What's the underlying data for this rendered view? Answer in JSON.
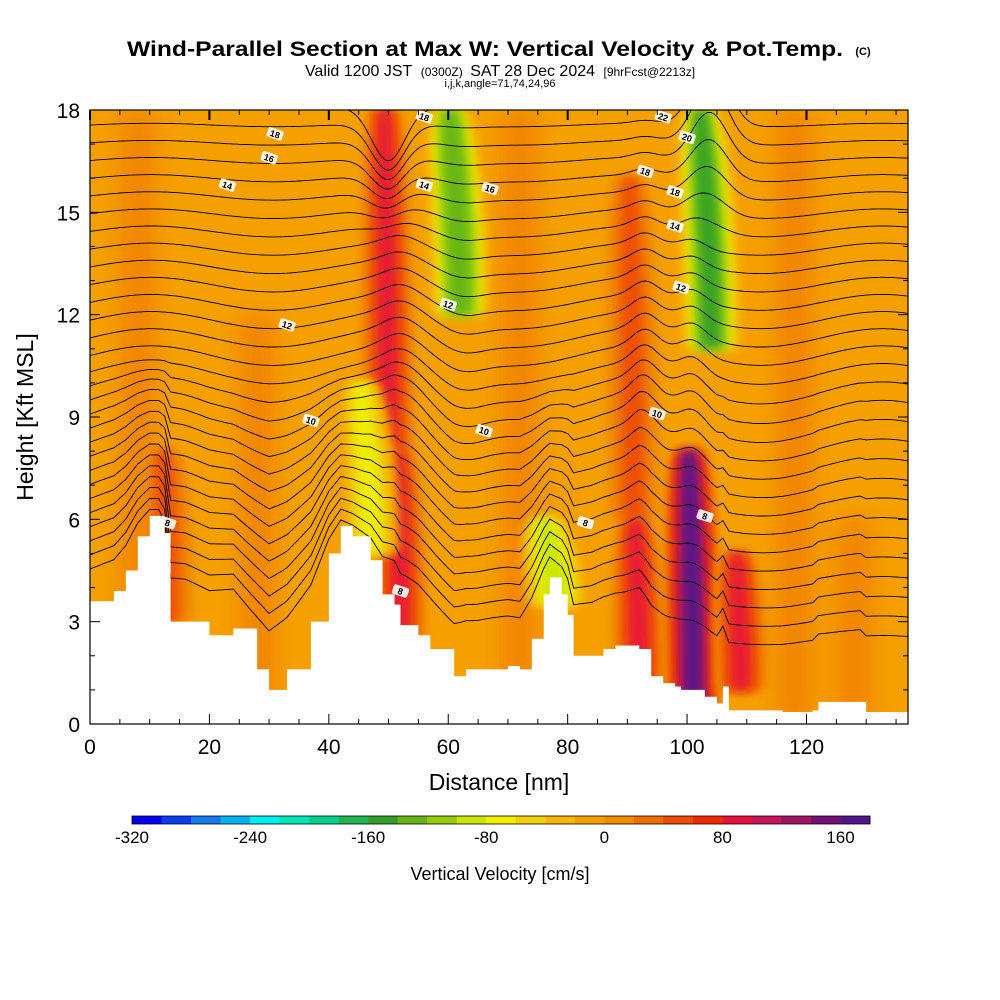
{
  "header": {
    "title": "Wind-Parallel Section at Max W: Vertical Velocity & Pot.Temp.",
    "copyright": "(C)",
    "valid_prefix": "Valid 1200 JST",
    "valid_utc": "(0300Z)",
    "valid_date": "SAT 28 Dec 2024",
    "forecast": "[9hrFcst@2213z]",
    "indices": "i,j,k,angle=71,74,24,96"
  },
  "colors": {
    "contour": "#000000",
    "terrain": "#ffffff",
    "background_field": "#f7b400",
    "frame": "#000000"
  },
  "colorbar": {
    "title": "Vertical Velocity [cm/s]",
    "labels": [
      "-320",
      "-240",
      "-160",
      "-80",
      "0",
      "80",
      "160"
    ],
    "levels": [
      -320,
      -300,
      -280,
      -260,
      -240,
      -220,
      -200,
      -180,
      -160,
      -140,
      -120,
      -100,
      -80,
      -60,
      -40,
      -20,
      0,
      20,
      40,
      60,
      80,
      100,
      120,
      140,
      160,
      180
    ],
    "colors": [
      "#0000f0",
      "#0a3cf0",
      "#1478f0",
      "#00b4f0",
      "#00f0f0",
      "#00e6b4",
      "#00d28c",
      "#1eb450",
      "#32a028",
      "#64b414",
      "#96cd0a",
      "#c8e600",
      "#f0f000",
      "#f0d200",
      "#f7b400",
      "#f5a000",
      "#f08c00",
      "#f06e00",
      "#f04b00",
      "#f02800",
      "#e6143c",
      "#c8145a",
      "#a01464",
      "#780f78",
      "#50148c"
    ]
  },
  "chart_data": {
    "type": "heatmap",
    "title": "Wind-Parallel Section at Max W: Vertical Velocity & Pot.Temp.",
    "xlabel": "Distance [nm]",
    "ylabel": "Height [Kft MSL]",
    "xlim": [
      0,
      137
    ],
    "ylim": [
      0,
      18
    ],
    "xticks": [
      0,
      20,
      40,
      60,
      80,
      100,
      120
    ],
    "yticks": [
      0,
      3,
      6,
      9,
      12,
      15,
      18
    ],
    "field": "Vertical Velocity [cm/s]",
    "background_value": -20,
    "updrafts": [
      {
        "x": 50,
        "y_bottom": 6,
        "y_top": 18,
        "peak": 80
      },
      {
        "x": 52,
        "y_bottom": 2.5,
        "y_top": 8,
        "peak": 80
      },
      {
        "x": 91,
        "y_bottom": 6,
        "y_top": 16,
        "peak": 40
      },
      {
        "x": 92,
        "y_bottom": 1,
        "y_top": 6,
        "peak": 80
      },
      {
        "x": 101,
        "y_bottom": 0.5,
        "y_top": 8,
        "peak": 160
      },
      {
        "x": 109,
        "y_bottom": 1,
        "y_top": 5,
        "peak": 80
      },
      {
        "x": 13,
        "y_bottom": 3,
        "y_top": 8,
        "peak": 40
      }
    ],
    "downdrafts": [
      {
        "x": 62,
        "y_bottom": 12,
        "y_top": 18,
        "peak": -140
      },
      {
        "x": 104,
        "y_bottom": 11,
        "y_top": 18,
        "peak": -160
      },
      {
        "x": 78,
        "y_bottom": 3.5,
        "y_top": 6,
        "peak": -100
      },
      {
        "x": 47,
        "y_bottom": 5,
        "y_top": 10,
        "peak": -80
      }
    ],
    "terrain_kft": [
      [
        0,
        3.6
      ],
      [
        4,
        3.9
      ],
      [
        6,
        4.5
      ],
      [
        8,
        5.5
      ],
      [
        10,
        6.1
      ],
      [
        11.5,
        6.1
      ],
      [
        12.5,
        5.6
      ],
      [
        13.5,
        3.0
      ],
      [
        16,
        3.0
      ],
      [
        20,
        2.6
      ],
      [
        24,
        2.8
      ],
      [
        28,
        1.6
      ],
      [
        30,
        1.0
      ],
      [
        33,
        1.6
      ],
      [
        37,
        3.0
      ],
      [
        40,
        5.0
      ],
      [
        42,
        5.8
      ],
      [
        44,
        5.5
      ],
      [
        47,
        4.8
      ],
      [
        49,
        3.8
      ],
      [
        51,
        3.5
      ],
      [
        52,
        2.9
      ],
      [
        55,
        2.6
      ],
      [
        57,
        2.2
      ],
      [
        61,
        1.4
      ],
      [
        63,
        1.6
      ],
      [
        65,
        1.6
      ],
      [
        70,
        1.7
      ],
      [
        72,
        1.6
      ],
      [
        74,
        2.5
      ],
      [
        76,
        3.8
      ],
      [
        77,
        4.3
      ],
      [
        79,
        3.8
      ],
      [
        80,
        3.2
      ],
      [
        81,
        2.0
      ],
      [
        84,
        2.0
      ],
      [
        86,
        2.2
      ],
      [
        88,
        2.3
      ],
      [
        92,
        2.2
      ],
      [
        94,
        1.4
      ],
      [
        96,
        1.2
      ],
      [
        98,
        1.1
      ],
      [
        99,
        1.0
      ],
      [
        103,
        0.8
      ],
      [
        105,
        0.6
      ],
      [
        106,
        1.1
      ],
      [
        107,
        0.4
      ],
      [
        116,
        0.35
      ],
      [
        121,
        0.4
      ],
      [
        122,
        0.65
      ],
      [
        129,
        0.65
      ],
      [
        130,
        0.35
      ],
      [
        137,
        0.35
      ]
    ],
    "theta_contours": {
      "units": "deg C (potential temperature)",
      "labeled_values": [
        "8",
        "10",
        "12",
        "14",
        "16",
        "18",
        "20",
        "22"
      ],
      "labels": [
        {
          "text": "18",
          "x": 31,
          "y": 17.3
        },
        {
          "text": "16",
          "x": 30,
          "y": 16.6
        },
        {
          "text": "14",
          "x": 23,
          "y": 15.8
        },
        {
          "text": "18",
          "x": 56,
          "y": 17.8
        },
        {
          "text": "14",
          "x": 56,
          "y": 15.8
        },
        {
          "text": "16",
          "x": 67,
          "y": 15.7
        },
        {
          "text": "22",
          "x": 96,
          "y": 17.8
        },
        {
          "text": "20",
          "x": 100,
          "y": 17.2
        },
        {
          "text": "18",
          "x": 93,
          "y": 16.2
        },
        {
          "text": "18",
          "x": 98,
          "y": 15.6
        },
        {
          "text": "14",
          "x": 98,
          "y": 14.6
        },
        {
          "text": "12",
          "x": 60,
          "y": 12.3
        },
        {
          "text": "12",
          "x": 33,
          "y": 11.7
        },
        {
          "text": "12",
          "x": 99,
          "y": 12.8
        },
        {
          "text": "10",
          "x": 37,
          "y": 8.9
        },
        {
          "text": "10",
          "x": 66,
          "y": 8.6
        },
        {
          "text": "10",
          "x": 95,
          "y": 9.1
        },
        {
          "text": "8",
          "x": 13,
          "y": 5.9
        },
        {
          "text": "8",
          "x": 83,
          "y": 5.9
        },
        {
          "text": "8",
          "x": 103,
          "y": 6.1
        },
        {
          "text": "8",
          "x": 52,
          "y": 3.9
        }
      ]
    }
  }
}
